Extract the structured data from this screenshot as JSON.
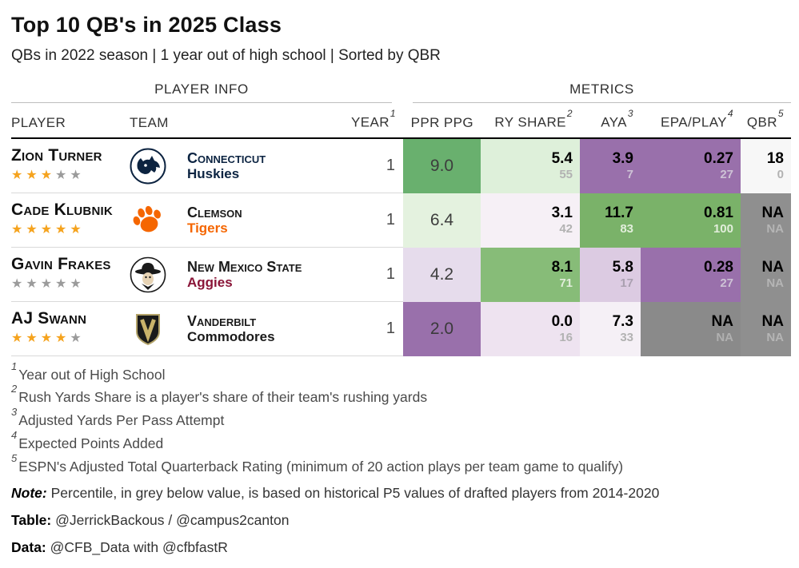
{
  "title": "Top 10 QB's in 2025 Class",
  "subtitle": "QBs in 2022 season | 1 year out of high school | Sorted by QBR",
  "table": {
    "spanner_left": "PLAYER INFO",
    "spanner_right": "METRICS",
    "headers": {
      "player": "PLAYER",
      "team": "TEAM",
      "year": "YEAR",
      "year_sup": "1",
      "ppr": "PPR PPG",
      "ry": "RY SHARE",
      "ry_sup": "2",
      "aya": "AYA",
      "aya_sup": "3",
      "epa": "EPA/PLAY",
      "epa_sup": "4",
      "qbr": "QBR",
      "qbr_sup": "5"
    }
  },
  "chart_data": {
    "type": "table",
    "columns": [
      "PLAYER",
      "TEAM",
      "YEAR",
      "PPR PPG",
      "RY SHARE",
      "AYA",
      "EPA/PLAY",
      "QBR"
    ],
    "rows": [
      {
        "player": "Zion Turner",
        "stars": 3,
        "team": {
          "name": "Connecticut",
          "mascot": "Huskies",
          "name_color": "#0c2442",
          "mascot_color": "#0c2442",
          "logo_icon": "uconn-huskies-logo"
        },
        "year": "1",
        "cells": {
          "ppr": {
            "value": "9.0",
            "bg": "#69b06e",
            "fg": "#3d3d3d"
          },
          "ry": {
            "value": "5.4",
            "pct": "55",
            "bg": "#def0da",
            "fg": "#000000",
            "pct_fg": "#b2b2b2"
          },
          "aya": {
            "value": "3.9",
            "pct": "7",
            "bg": "#9970ab",
            "fg": "#000000",
            "pct_fg": "#cdc2d5"
          },
          "epa": {
            "value": "0.27",
            "pct": "27",
            "bg": "#9970ab",
            "fg": "#000000",
            "pct_fg": "#cdc2d5"
          },
          "qbr": {
            "value": "18",
            "pct": "0",
            "bg": "#f7f7f7",
            "fg": "#000000",
            "pct_fg": "#b2b2b2"
          }
        }
      },
      {
        "player": "Cade Klubnik",
        "stars": 5,
        "team": {
          "name": "Clemson",
          "mascot": "Tigers",
          "name_color": "#1a1a1a",
          "mascot_color": "#f56600",
          "logo_icon": "clemson-tigers-paw-logo"
        },
        "year": "1",
        "cells": {
          "ppr": {
            "value": "6.4",
            "bg": "#e4f2df",
            "fg": "#3d3d3d"
          },
          "ry": {
            "value": "3.1",
            "pct": "42",
            "bg": "#f6f0f6",
            "fg": "#000000",
            "pct_fg": "#b2b2b2"
          },
          "aya": {
            "value": "11.7",
            "pct": "83",
            "bg": "#7ab269",
            "fg": "#000000",
            "pct_fg": "#e2eedb"
          },
          "epa": {
            "value": "0.81",
            "pct": "100",
            "bg": "#7ab269",
            "fg": "#000000",
            "pct_fg": "#e2eedb"
          },
          "qbr": {
            "value": "NA",
            "pct": "NA",
            "bg": "#8f8f8f",
            "fg": "#000000",
            "pct_fg": "#b5b5b5"
          }
        }
      },
      {
        "player": "Gavin Frakes",
        "stars": 0,
        "team": {
          "name": "New Mexico State",
          "mascot": "Aggies",
          "name_color": "#1a1a1a",
          "mascot_color": "#8a1538",
          "logo_icon": "new-mexico-state-pistol-pete-logo"
        },
        "year": "1",
        "cells": {
          "ppr": {
            "value": "4.2",
            "bg": "#e6dcec",
            "fg": "#3d3d3d"
          },
          "ry": {
            "value": "8.1",
            "pct": "71",
            "bg": "#87bc78",
            "fg": "#000000",
            "pct_fg": "#e2eedb"
          },
          "aya": {
            "value": "5.8",
            "pct": "17",
            "bg": "#dccbe2",
            "fg": "#000000",
            "pct_fg": "#aaa0b0"
          },
          "epa": {
            "value": "0.28",
            "pct": "27",
            "bg": "#9970ab",
            "fg": "#000000",
            "pct_fg": "#cdc2d5"
          },
          "qbr": {
            "value": "NA",
            "pct": "NA",
            "bg": "#8f8f8f",
            "fg": "#000000",
            "pct_fg": "#b5b5b5"
          }
        }
      },
      {
        "player": "AJ Swann",
        "stars": 4,
        "team": {
          "name": "Vanderbilt",
          "mascot": "Commodores",
          "name_color": "#1a1a1a",
          "mascot_color": "#1a1a1a",
          "logo_icon": "vanderbilt-commodores-logo"
        },
        "year": "1",
        "cells": {
          "ppr": {
            "value": "2.0",
            "bg": "#9970ab",
            "fg": "#3a3a3a"
          },
          "ry": {
            "value": "0.0",
            "pct": "16",
            "bg": "#eee3f0",
            "fg": "#000000",
            "pct_fg": "#b2b2b2"
          },
          "aya": {
            "value": "7.3",
            "pct": "33",
            "bg": "#f5f0f6",
            "fg": "#000000",
            "pct_fg": "#b2b2b2"
          },
          "epa": {
            "value": "NA",
            "pct": "NA",
            "bg": "#8a8a8a",
            "fg": "#000000",
            "pct_fg": "#b0b0b0"
          },
          "qbr": {
            "value": "NA",
            "pct": "NA",
            "bg": "#8f8f8f",
            "fg": "#000000",
            "pct_fg": "#b5b5b5"
          }
        }
      }
    ]
  },
  "footnotes": [
    {
      "sup": "1",
      "text": "Year out of High School"
    },
    {
      "sup": "2",
      "text": "Rush Yards Share is a player's share of their team's rushing yards"
    },
    {
      "sup": "3",
      "text": "Adjusted Yards Per Pass Attempt"
    },
    {
      "sup": "4",
      "text": "Expected Points Added"
    },
    {
      "sup": "5",
      "text": "ESPN's Adjusted Total Quarterback Rating (minimum of 20 action plays per team game to qualify)"
    }
  ],
  "note": {
    "label": "Note:",
    "text": "Percentile, in grey below value, is based on historical P5 values of drafted players from 2014-2020"
  },
  "credits": [
    {
      "label": "Table:",
      "text": "@JerrickBackous / @campus2canton"
    },
    {
      "label": "Data:",
      "text": "@CFB_Data with @cfbfastR"
    }
  ],
  "colors": {
    "star_gold": "#f5a31e",
    "star_grey": "#9b9b9b",
    "na_bg": "#8f8f8f",
    "accent_purple": "#9970ab",
    "accent_green": "#69b06e"
  }
}
